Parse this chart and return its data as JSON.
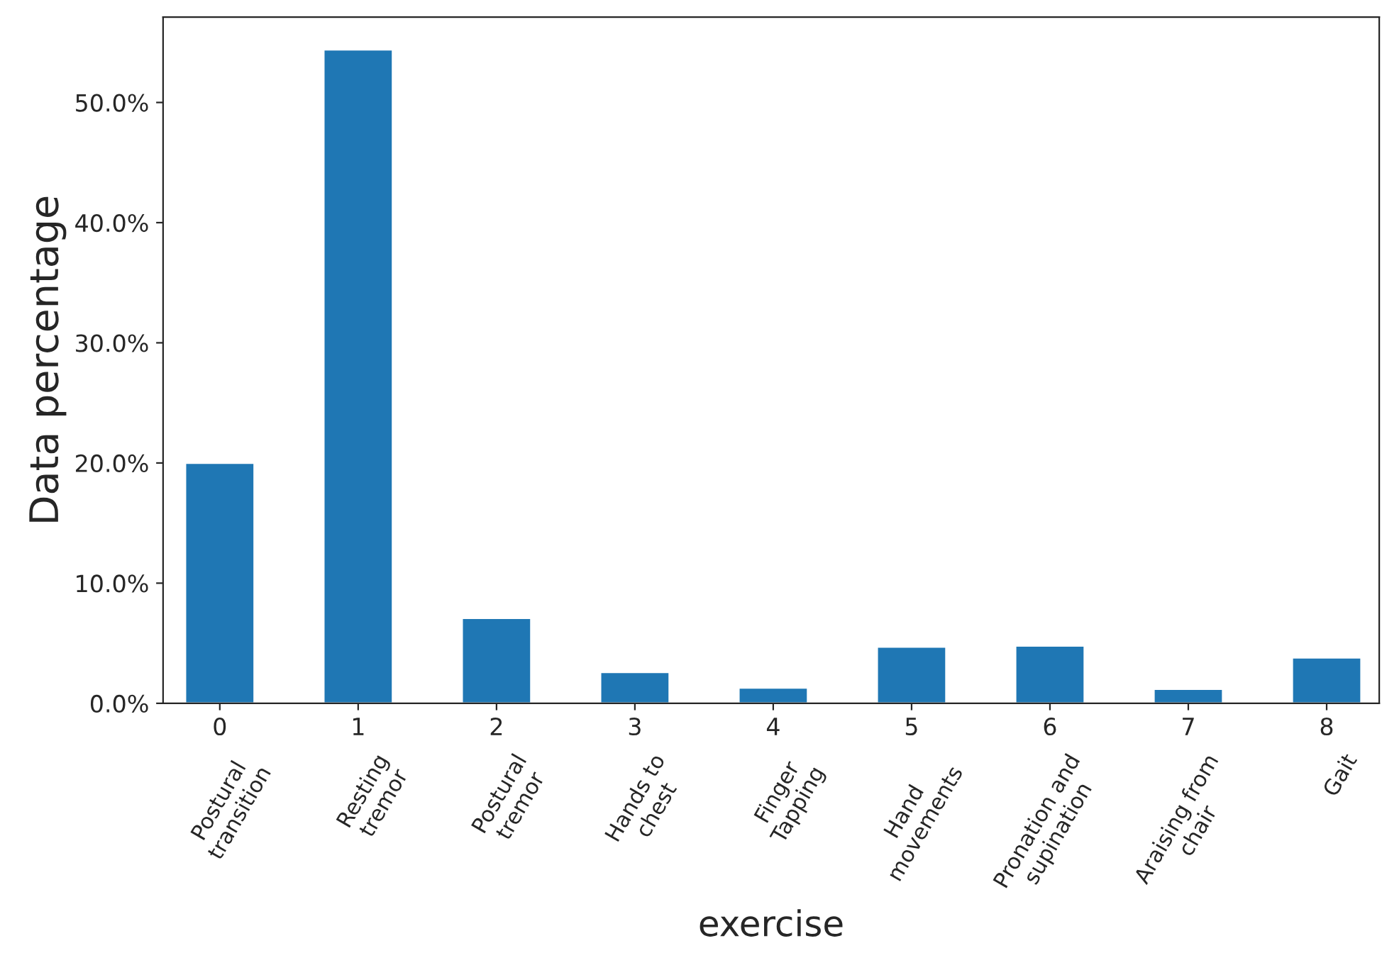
{
  "chart_data": {
    "type": "bar",
    "xlabel": "exercise",
    "ylabel": "Data percentage",
    "x": [
      0,
      1,
      2,
      3,
      4,
      5,
      6,
      7,
      8
    ],
    "values": [
      20.0,
      54.4,
      7.1,
      2.6,
      1.3,
      4.7,
      4.8,
      1.2,
      3.8
    ],
    "color": "#1f77b4",
    "xlim": [
      -0.41,
      8.38
    ],
    "xticks": [
      0,
      1,
      2,
      3,
      4,
      5,
      6,
      7,
      8
    ],
    "ylim": [
      0,
      57.1
    ],
    "yticks": [
      {
        "value": 0,
        "label": "0.0%"
      },
      {
        "value": 10,
        "label": "10.0%"
      },
      {
        "value": 20,
        "label": "20.0%"
      },
      {
        "value": 30,
        "label": "30.0%"
      },
      {
        "value": 40,
        "label": "40.0%"
      },
      {
        "value": 50,
        "label": "50.0%"
      }
    ],
    "grid": false,
    "legend": false,
    "annotations": [
      "Postural\ntransition",
      "Resting\ntremor",
      "Postural\ntremor",
      "Hands to\nchest",
      "Finger\nTapping",
      "Hand\nmovements",
      "Pronation and\nsupination",
      "Araising from\nchair",
      "Gait"
    ]
  }
}
